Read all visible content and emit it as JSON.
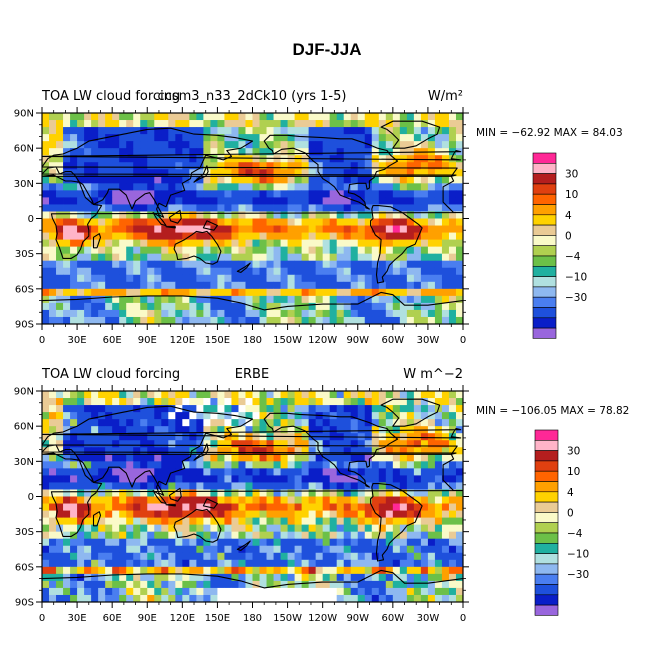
{
  "title": "DJF-JJA",
  "colors": {
    "levels": [
      "#9966dd",
      "#0a1ec8",
      "#1e50dc",
      "#4a7ef0",
      "#8eb8f0",
      "#b0e0e0",
      "#20b0a0",
      "#6cc048",
      "#b0d050",
      "#fafac8",
      "#eacb95",
      "#ffd200",
      "#ffa000",
      "#ff6400",
      "#e04010",
      "#b41e1e",
      "#ffb4c8",
      "#ff2896"
    ],
    "ocean_hint": "#a8dce0",
    "missing": "#ffffff",
    "coast": "#000000"
  },
  "chart_data": [
    {
      "type": "heatmap",
      "title_left": "TOA LW cloud forcing",
      "title_center": "ccsm3_n33_2dCk10 (yrs 1-5)",
      "units": "W/m²",
      "min_max": "MIN = −62.92 MAX =  84.03",
      "xticks": [
        "0",
        "30E",
        "60E",
        "90E",
        "120E",
        "150E",
        "180",
        "150W",
        "120W",
        "90W",
        "60W",
        "30W",
        "0"
      ],
      "yticks": [
        "90N",
        "60N",
        "30N",
        "0",
        "30S",
        "60S",
        "90S"
      ],
      "xlim": [
        0,
        360
      ],
      "ylim": [
        -90,
        90
      ],
      "colorbar_labels": [
        "30",
        "10",
        "4",
        "0",
        "−4",
        "−10",
        "−30"
      ]
    },
    {
      "type": "heatmap",
      "title_left": "TOA LW cloud forcing",
      "title_center": "ERBE",
      "units": "W m^−2",
      "min_max": "MIN = −106.05 MAX =  78.82",
      "xticks": [
        "0",
        "30E",
        "60E",
        "90E",
        "120E",
        "150E",
        "180",
        "150W",
        "120W",
        "90W",
        "60W",
        "30W",
        "0"
      ],
      "yticks": [
        "90N",
        "60N",
        "30N",
        "0",
        "30S",
        "60S",
        "90S"
      ],
      "xlim": [
        0,
        360
      ],
      "ylim": [
        -90,
        90
      ],
      "colorbar_labels": [
        "30",
        "10",
        "4",
        "0",
        "−4",
        "−10",
        "−30"
      ]
    }
  ]
}
